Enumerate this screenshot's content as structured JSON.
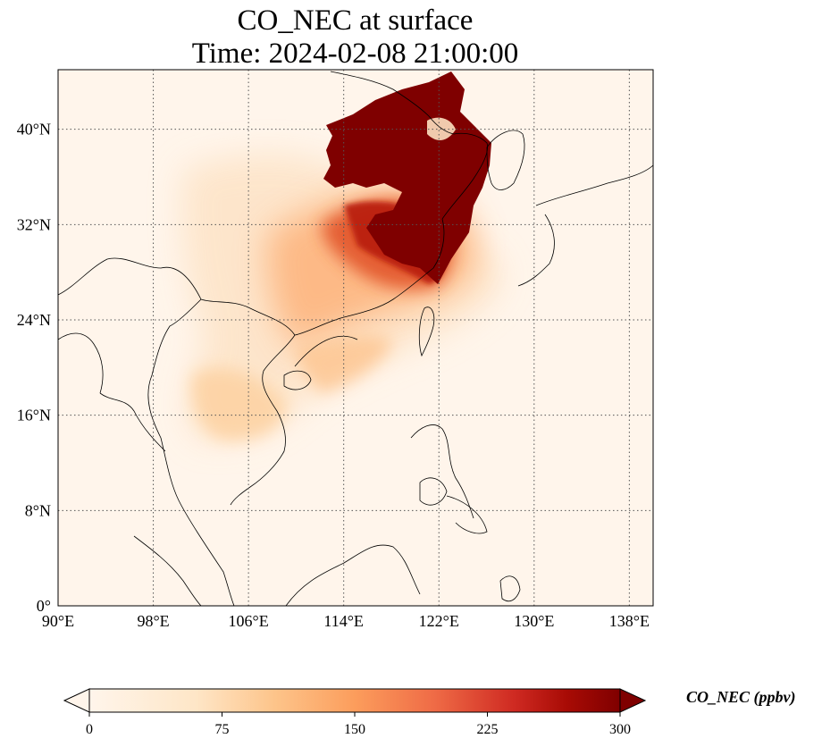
{
  "title": {
    "line1": "CO_NEC at surface",
    "line2": "Time: 2024-02-08 21:00:00"
  },
  "map": {
    "lon_ticks": [
      "90°E",
      "98°E",
      "106°E",
      "114°E",
      "122°E",
      "130°E",
      "138°E"
    ],
    "lat_ticks": [
      "0°",
      "8°N",
      "16°N",
      "24°N",
      "32°N",
      "40°N"
    ],
    "lon_values": [
      90,
      98,
      106,
      114,
      122,
      130,
      138
    ],
    "lat_values": [
      0,
      8,
      16,
      24,
      32,
      40
    ],
    "extent": {
      "lon_min": 90,
      "lon_max": 140,
      "lat_min": 0,
      "lat_max": 45
    },
    "gridlines": "dotted",
    "field_colors": [
      "#fff5eb",
      "#fdd9b0",
      "#fdae6b",
      "#f16913",
      "#c03a0c",
      "#7f0000"
    ]
  },
  "colorbar": {
    "label": "CO_NEC (ppbv)",
    "ticks": [
      "0",
      "75",
      "150",
      "225",
      "300"
    ],
    "tick_values": [
      0,
      75,
      150,
      225,
      300
    ],
    "range": [
      0,
      300
    ],
    "extend": "both",
    "colormap": "OrRd"
  }
}
